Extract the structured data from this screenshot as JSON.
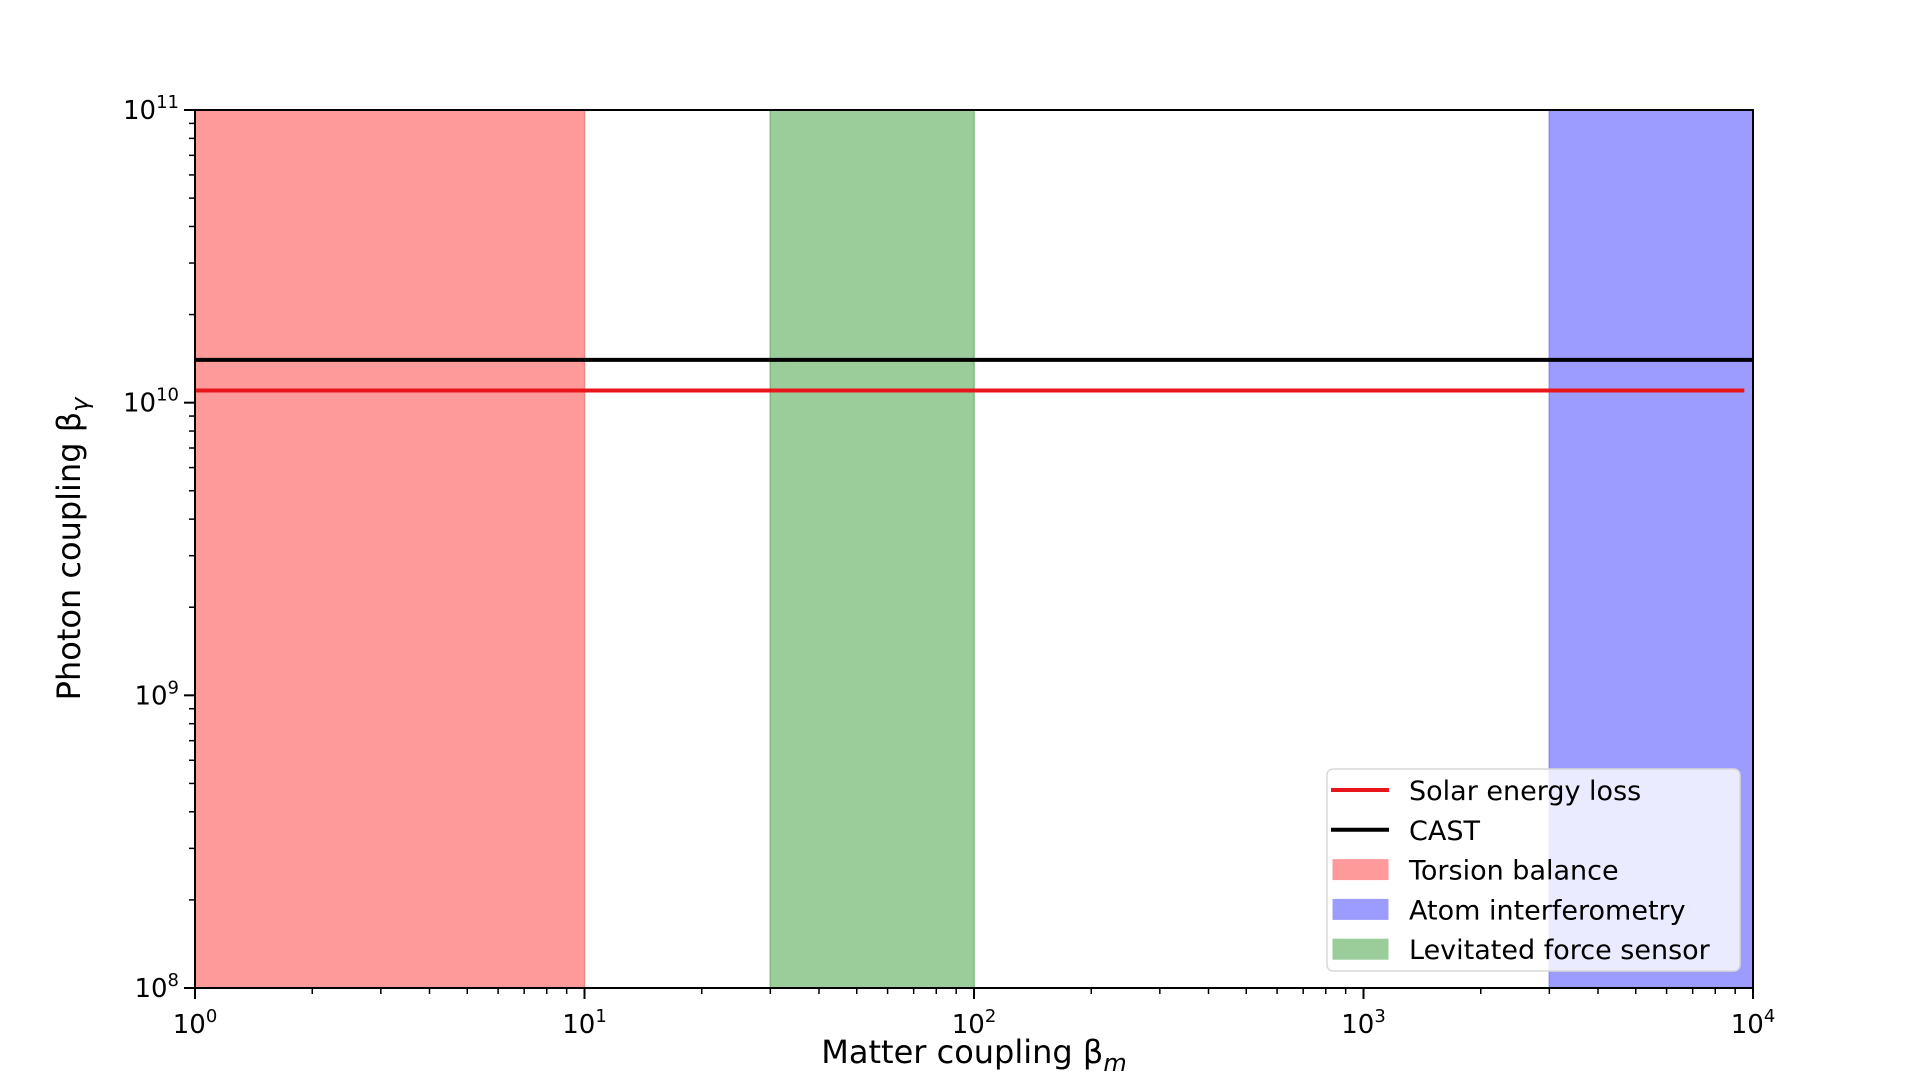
{
  "chart_data": {
    "type": "area",
    "xscale": "log",
    "yscale": "log",
    "xlim": [
      1,
      10000
    ],
    "ylim": [
      100000000,
      100000000000
    ],
    "xlabel": "Matter coupling β",
    "xlabel_sub": "m",
    "ylabel": "Photon coupling β",
    "ylabel_sub": "γ",
    "x_ticks": [
      {
        "value": 1,
        "base": "10",
        "exp": "0"
      },
      {
        "value": 10,
        "base": "10",
        "exp": "1"
      },
      {
        "value": 100,
        "base": "10",
        "exp": "2"
      },
      {
        "value": 1000,
        "base": "10",
        "exp": "3"
      },
      {
        "value": 10000,
        "base": "10",
        "exp": "4"
      }
    ],
    "y_ticks": [
      {
        "value": 100000000,
        "base": "10",
        "exp": "8"
      },
      {
        "value": 1000000000,
        "base": "10",
        "exp": "9"
      },
      {
        "value": 10000000000,
        "base": "10",
        "exp": "10"
      },
      {
        "value": 100000000000,
        "base": "10",
        "exp": "11"
      }
    ],
    "lines": [
      {
        "name": "Solar energy loss",
        "y": 11000000000,
        "x": [
          1,
          9500
        ],
        "color": "#e8151b"
      },
      {
        "name": "CAST",
        "y": 14000000000,
        "x": [
          1,
          10000
        ],
        "color": "#000000"
      }
    ],
    "bands": [
      {
        "name": "Torsion balance",
        "x": [
          1,
          10
        ],
        "color": "#ff9a9a",
        "edge": "#e88a8a"
      },
      {
        "name": "Atom interferometry",
        "x": [
          3000,
          10000
        ],
        "color": "#9c9cff",
        "edge": "#8a8aee"
      },
      {
        "name": "Levitated force sensor",
        "x": [
          30,
          100
        ],
        "color": "#9bcd9b",
        "edge": "#80b880"
      }
    ],
    "legend": {
      "position": "lower-right",
      "entries": [
        {
          "label": "Solar energy loss",
          "kind": "line",
          "color": "#e8151b"
        },
        {
          "label": "CAST",
          "kind": "line",
          "color": "#000000"
        },
        {
          "label": "Torsion balance",
          "kind": "patch",
          "color": "#ff9a9a"
        },
        {
          "label": "Atom interferometry",
          "kind": "patch",
          "color": "#9c9cff"
        },
        {
          "label": "Levitated force sensor",
          "kind": "patch",
          "color": "#9bcd9b"
        }
      ]
    }
  }
}
